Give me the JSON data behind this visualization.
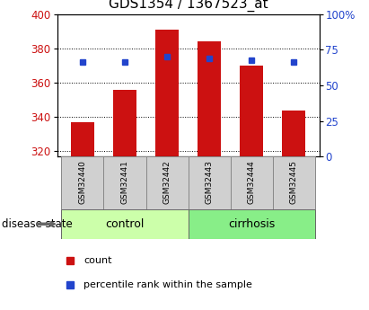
{
  "title": "GDS1354 / 1367523_at",
  "categories": [
    "GSM32440",
    "GSM32441",
    "GSM32442",
    "GSM32443",
    "GSM32444",
    "GSM32445"
  ],
  "bar_values": [
    337,
    356,
    391,
    384,
    370,
    344
  ],
  "bar_bottom": 317,
  "blue_marker_values": [
    372,
    372,
    375,
    374,
    373,
    372
  ],
  "ylim_left": [
    317,
    400
  ],
  "ylim_right": [
    0,
    100
  ],
  "yticks_left": [
    320,
    340,
    360,
    380,
    400
  ],
  "yticks_right": [
    0,
    25,
    50,
    75,
    100
  ],
  "bar_color": "#cc1111",
  "blue_color": "#2244cc",
  "group_labels": [
    "control",
    "cirrhosis"
  ],
  "group_ranges": [
    [
      0,
      3
    ],
    [
      3,
      6
    ]
  ],
  "group_colors_light": [
    "#ccffaa",
    "#88ee88"
  ],
  "group_colors_dark": [
    "#aaddaa",
    "#55cc55"
  ],
  "tick_label_color_left": "#cc1111",
  "tick_label_color_right": "#2244cc",
  "legend_count_label": "count",
  "legend_percentile_label": "percentile rank within the sample",
  "disease_state_label": "disease state",
  "title_fontsize": 11,
  "bar_width": 0.55
}
